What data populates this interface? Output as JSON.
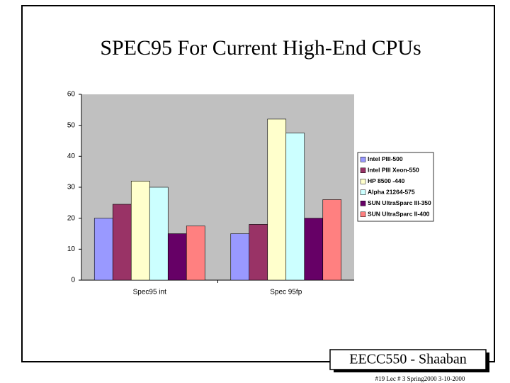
{
  "chart_data": {
    "type": "bar",
    "title": "SPEC95 For Current High-End CPUs",
    "categories": [
      "Spec95 int",
      "Spec 95fp"
    ],
    "series": [
      {
        "name": "Intel PIII-500",
        "color": "#9999ff",
        "values": [
          20,
          15
        ]
      },
      {
        "name": "Intel PIII Xeon-550",
        "color": "#993366",
        "values": [
          24.5,
          18
        ]
      },
      {
        "name": "HP 8500 -440",
        "color": "#ffffcc",
        "values": [
          32,
          52
        ]
      },
      {
        "name": "Alpha 21264-575",
        "color": "#ccffff",
        "values": [
          30,
          47.5
        ]
      },
      {
        "name": "SUN UltraSparc III-350",
        "color": "#660066",
        "values": [
          15,
          20
        ]
      },
      {
        "name": "SUN UltraSparc II-400",
        "color": "#ff8080",
        "values": [
          17.5,
          26
        ]
      }
    ],
    "ylim": [
      0,
      60
    ],
    "yticks": [
      0,
      10,
      20,
      30,
      40,
      50,
      60
    ],
    "grid": false,
    "legend": "right"
  },
  "footer": {
    "course": "EECC550 - Shaaban",
    "info": "#19 Lec # 3 Spring2000 3-10-2000"
  }
}
